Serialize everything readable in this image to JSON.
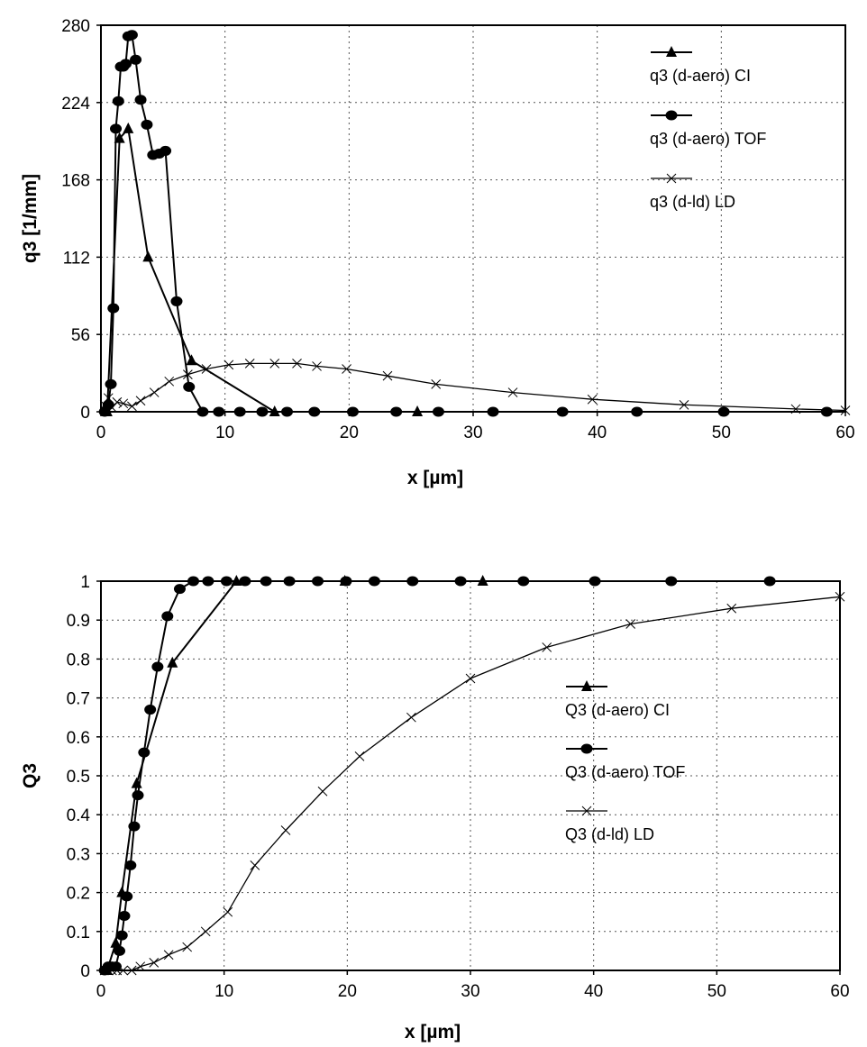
{
  "chart_data": [
    {
      "type": "line",
      "xlabel": "x  [µm]",
      "ylabel": "q3  [1/mm]",
      "xlim": [
        0,
        60
      ],
      "ylim": [
        0,
        280
      ],
      "xticks": [
        0,
        10,
        20,
        30,
        40,
        50,
        60
      ],
      "yticks": [
        0,
        56,
        112,
        168,
        224,
        280
      ],
      "grid": true,
      "legend_position": "top-right",
      "series": [
        {
          "name": "q3 (d-aero) CI",
          "marker": "triangle",
          "color": "#000000",
          "x": [
            0.5,
            1.5,
            2.2,
            3.8,
            7.3,
            14.0,
            25.5
          ],
          "y": [
            0,
            198,
            205,
            112,
            37,
            0,
            0
          ]
        },
        {
          "name": "q3 (d-aero) TOF",
          "marker": "circle",
          "color": "#000000",
          "x": [
            0.3,
            0.6,
            0.8,
            1.0,
            1.2,
            1.4,
            1.6,
            1.8,
            2.0,
            2.2,
            2.5,
            2.8,
            3.2,
            3.7,
            4.2,
            4.7,
            5.2,
            6.1,
            7.1,
            8.2,
            9.5,
            11.2,
            13.0,
            15.0,
            17.2,
            20.3,
            23.8,
            27.2,
            31.6,
            37.2,
            43.2,
            50.2,
            58.5
          ],
          "y": [
            0,
            5,
            20,
            75,
            205,
            225,
            250,
            250,
            252,
            272,
            273,
            255,
            226,
            208,
            186,
            187,
            189,
            80,
            18,
            0,
            0,
            0,
            0,
            0,
            0,
            0,
            0,
            0,
            0,
            0,
            0,
            0,
            0
          ]
        },
        {
          "name": "q3 (d-ld) LD",
          "marker": "x",
          "color": "#000000",
          "x": [
            0.3,
            0.6,
            0.9,
            1.3,
            1.8,
            2.5,
            3.2,
            4.3,
            5.5,
            7.0,
            8.5,
            10.3,
            12.0,
            14.0,
            15.8,
            17.4,
            19.8,
            23.1,
            27.0,
            33.2,
            39.6,
            47.0,
            56.0,
            60.0
          ],
          "y": [
            5,
            10,
            3,
            7,
            6,
            4,
            8,
            14,
            22,
            27,
            31,
            34,
            35,
            35,
            35,
            33,
            31,
            26,
            20,
            14,
            9,
            5,
            2,
            1
          ]
        }
      ]
    },
    {
      "type": "line",
      "xlabel": "x  [µm]",
      "ylabel": "Q3",
      "xlim": [
        0,
        60
      ],
      "ylim": [
        0,
        1
      ],
      "xticks": [
        0,
        10,
        20,
        30,
        40,
        50,
        60
      ],
      "yticks": [
        0,
        0.1,
        0.2,
        0.3,
        0.4,
        0.5,
        0.6,
        0.7,
        0.8,
        0.9,
        1
      ],
      "grid": true,
      "legend_position": "center-right",
      "series": [
        {
          "name": "Q3 (d-aero) CI",
          "marker": "triangle",
          "color": "#000000",
          "x": [
            0.5,
            1.2,
            1.7,
            2.9,
            5.8,
            11.0,
            19.8,
            31.0
          ],
          "y": [
            0,
            0.07,
            0.2,
            0.48,
            0.79,
            1,
            1,
            1
          ]
        },
        {
          "name": "Q3 (d-aero) TOF",
          "marker": "circle",
          "color": "#000000",
          "x": [
            0.3,
            0.6,
            0.9,
            1.2,
            1.5,
            1.7,
            1.9,
            2.1,
            2.4,
            2.7,
            3.0,
            3.5,
            4.0,
            4.6,
            5.4,
            6.4,
            7.5,
            8.7,
            10.2,
            11.7,
            13.4,
            15.3,
            17.6,
            19.9,
            22.2,
            25.3,
            29.2,
            34.3,
            40.1,
            46.3,
            54.3
          ],
          "y": [
            0,
            0.01,
            0.01,
            0.01,
            0.05,
            0.09,
            0.14,
            0.19,
            0.27,
            0.37,
            0.45,
            0.56,
            0.67,
            0.78,
            0.91,
            0.98,
            1,
            1,
            1,
            1,
            1,
            1,
            1,
            1,
            1,
            1,
            1,
            1,
            1,
            1,
            1
          ]
        },
        {
          "name": "Q3 (d-ld) LD",
          "marker": "x",
          "color": "#000000",
          "x": [
            0.3,
            0.6,
            0.9,
            1.3,
            1.8,
            2.5,
            3.2,
            4.3,
            5.5,
            7.0,
            8.5,
            10.3,
            12.5,
            15.0,
            18.0,
            21.0,
            25.2,
            30.0,
            36.2,
            43.0,
            51.2,
            60.0
          ],
          "y": [
            0,
            0,
            0,
            0,
            0,
            0,
            0.01,
            0.02,
            0.04,
            0.06,
            0.1,
            0.15,
            0.27,
            0.36,
            0.46,
            0.55,
            0.65,
            0.75,
            0.83,
            0.89,
            0.93,
            0.96
          ]
        }
      ]
    }
  ]
}
